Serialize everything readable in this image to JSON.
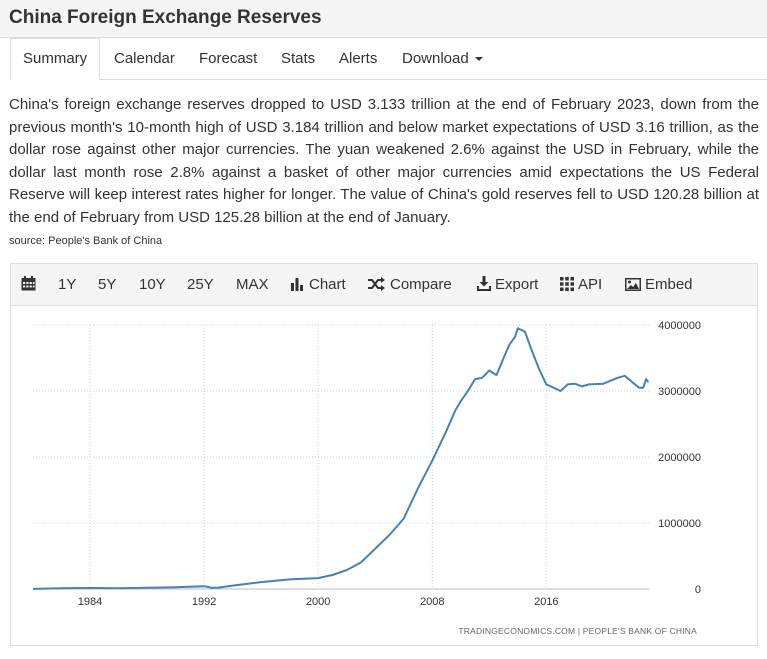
{
  "header": {
    "title": "China Foreign Exchange Reserves"
  },
  "tabs": [
    {
      "label": "Summary",
      "active": true
    },
    {
      "label": "Calendar"
    },
    {
      "label": "Forecast"
    },
    {
      "label": "Stats"
    },
    {
      "label": "Alerts"
    },
    {
      "label": "Download",
      "icon": "caret-down-icon"
    }
  ],
  "description": "China's foreign exchange reserves dropped to USD 3.133 trillion at the end of February 2023, down from the previous month's 10-month high of USD 3.184 trillion and below market expectations of USD 3.16 trillion, as the dollar rose against other major currencies. The yuan weakened 2.6% against the USD in February, while the dollar last month rose 2.8% against a basket of other major currencies amid expectations the US Federal Reserve will keep interest rates higher for longer. The value of China's gold reserves fell to USD 120.28 billion at the end of February from USD 125.28 billion at the end of January.",
  "source": "source: People's Bank of China",
  "toolbar": {
    "calendar_icon": "calendar-icon",
    "ranges": [
      "1Y",
      "5Y",
      "10Y",
      "25Y",
      "MAX"
    ],
    "chart_label": "Chart",
    "chart_icon": "bar-chart-icon",
    "compare_label": "Compare",
    "compare_icon": "shuffle-icon",
    "export_label": "Export",
    "export_icon": "download-icon",
    "api_label": "API",
    "api_icon": "grid-icon",
    "embed_label": "Embed",
    "embed_icon": "image-icon"
  },
  "chart": {
    "credit": "TRADINGECONOMICS.COM | PEOPLE'S BANK OF CHINA",
    "line_color": "#4682b4"
  },
  "chart_data": {
    "type": "line",
    "title": "",
    "xlabel": "",
    "ylabel": "",
    "x_ticks": [
      "1984",
      "1992",
      "2000",
      "2008",
      "2016"
    ],
    "y_ticks": [
      "0",
      "1000000",
      "2000000",
      "3000000",
      "4000000"
    ],
    "xlim": [
      1980,
      2023.2
    ],
    "ylim": [
      0,
      4000000
    ],
    "grid": true,
    "legend": "none",
    "series": [
      {
        "x": [
          1980,
          1982,
          1984,
          1986,
          1988,
          1990,
          1992,
          1992.5,
          1993,
          1994,
          1996,
          1998,
          2000,
          2001,
          2002,
          2003,
          2004,
          2005,
          2006,
          2007,
          2008,
          2009,
          2009.6,
          2010,
          2010.5,
          2011,
          2011.5,
          2012,
          2012.5,
          2013,
          2013.4,
          2013.8,
          2014,
          2014.5,
          2015,
          2015.5,
          2016,
          2016.5,
          2017,
          2017.5,
          2018,
          2018.5,
          2019,
          2020,
          2021,
          2021.5,
          2022,
          2022.5,
          2022.8,
          2023,
          2023.15
        ],
        "y": [
          2000,
          10000,
          15000,
          12000,
          18000,
          28000,
          42000,
          20000,
          21000,
          52000,
          105000,
          145000,
          165000,
          212000,
          286000,
          403000,
          610000,
          819000,
          1066000,
          1528000,
          1946000,
          2399000,
          2700000,
          2847000,
          3000000,
          3181000,
          3200000,
          3310000,
          3240000,
          3500000,
          3700000,
          3820000,
          3950000,
          3900000,
          3600000,
          3330000,
          3100000,
          3050000,
          3000000,
          3100000,
          3110000,
          3070000,
          3100000,
          3110000,
          3200000,
          3230000,
          3140000,
          3050000,
          3050000,
          3180000,
          3133000
        ]
      }
    ]
  }
}
